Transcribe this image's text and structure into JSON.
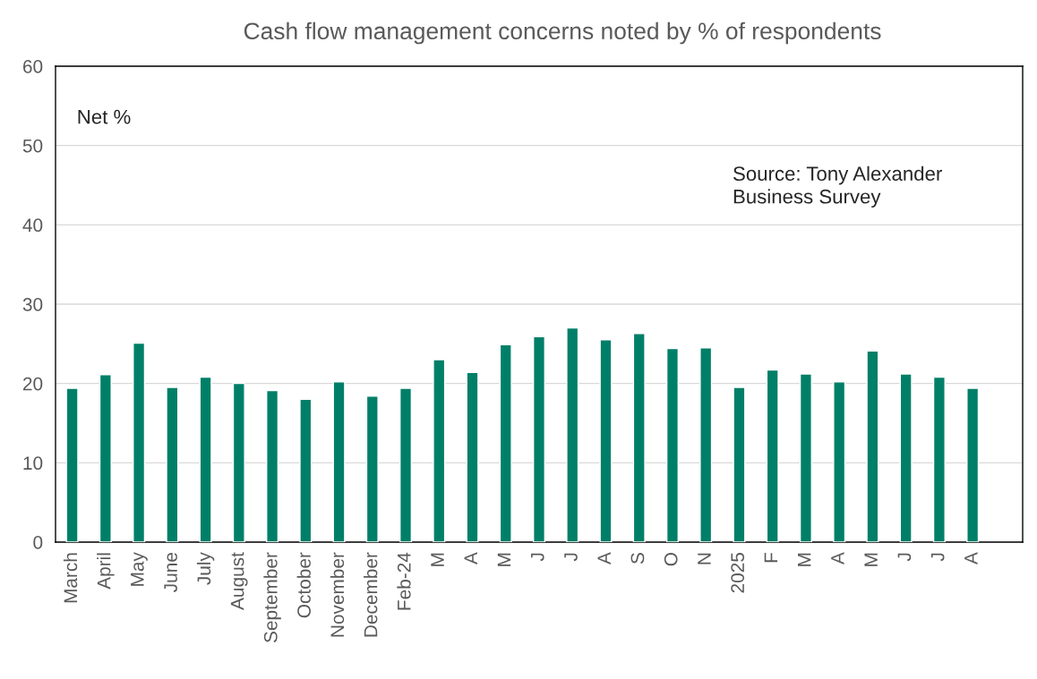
{
  "chart_data": {
    "type": "bar",
    "title": "Cash flow management concerns noted by % of respondents",
    "categories": [
      "March",
      "April",
      "May",
      "June",
      "July",
      "August",
      "September",
      "October",
      "November",
      "December",
      "Feb-24",
      "M",
      "A",
      "M",
      "J",
      "J",
      "A",
      "S",
      "O",
      "N",
      "2025",
      "F",
      "M",
      "A",
      "M",
      "J",
      "J",
      "A"
    ],
    "values": [
      19.4,
      21.1,
      25.1,
      19.5,
      20.8,
      20.0,
      19.1,
      18.0,
      20.2,
      18.4,
      19.4,
      23.0,
      21.4,
      24.9,
      25.9,
      27.0,
      25.5,
      26.3,
      24.4,
      24.5,
      19.5,
      21.7,
      21.2,
      20.2,
      24.1,
      21.2,
      20.8,
      19.4
    ],
    "color": "#007f68",
    "ylim": [
      0,
      60
    ],
    "yticks": [
      0,
      10,
      20,
      30,
      40,
      50,
      60
    ],
    "grid": "y",
    "legend": false,
    "annotations": [
      "Net %",
      "Source: Tony Alexander Business Survey"
    ]
  }
}
